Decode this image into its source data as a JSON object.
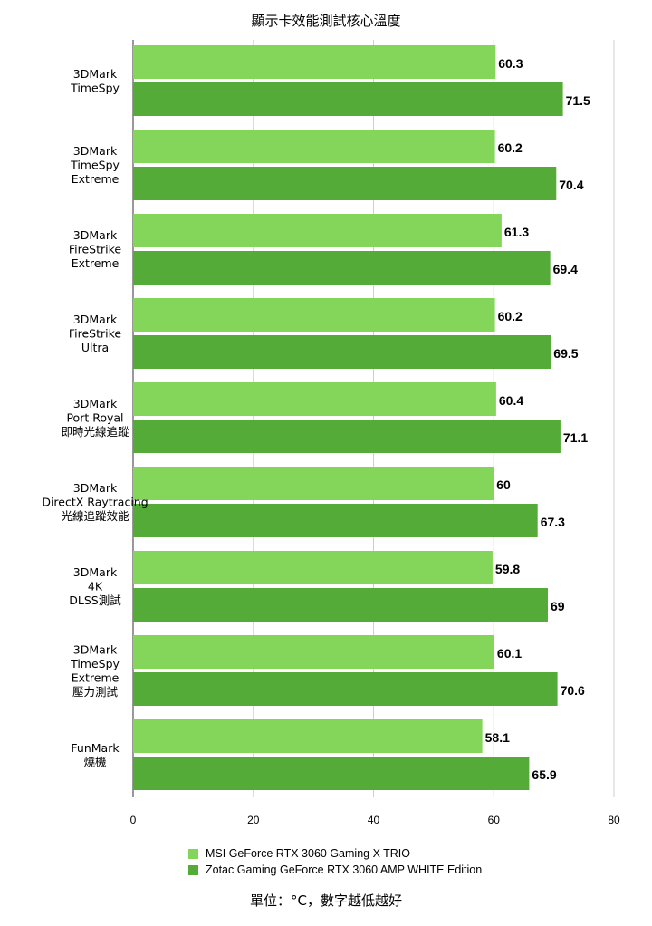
{
  "chart_data": {
    "type": "bar",
    "orientation": "horizontal",
    "title": "顯示卡效能測試核心溫度",
    "categories": [
      "3DMark\nTimeSpy",
      "3DMark\nTimeSpy\nExtreme",
      "3DMark\nFireStrike\nExtreme",
      "3DMark\nFireStrike\nUltra",
      "3DMark\nPort Royal\n即時光線追蹤",
      "3DMark\nDirectX Raytracing\n光線追蹤效能",
      "3DMark\n4K\nDLSS測試",
      "3DMark\nTimeSpy\nExtreme\n壓力測試",
      "FunMark\n燒機"
    ],
    "series": [
      {
        "name": "MSI GeForce RTX 3060 Gaming X TRIO",
        "color": "#83d65a",
        "values": [
          60.3,
          60.2,
          61.3,
          60.2,
          60.4,
          60,
          59.8,
          60.1,
          58.1
        ]
      },
      {
        "name": "Zotac Gaming GeForce RTX 3060 AMP WHITE Edition",
        "color": "#55ab37",
        "values": [
          71.5,
          70.4,
          69.4,
          69.5,
          71.1,
          67.3,
          69,
          70.6,
          65.9
        ]
      }
    ],
    "value_labels": [
      [
        "60.3",
        "60.2",
        "61.3",
        "60.2",
        "60.4",
        "60",
        "59.8",
        "60.1",
        "58.1"
      ],
      [
        "71.5",
        "70.4",
        "69.4",
        "69.5",
        "71.1",
        "67.3",
        "69",
        "70.6",
        "65.9"
      ]
    ],
    "xlim": [
      0,
      80
    ],
    "xticks": [
      0,
      20,
      40,
      60,
      80
    ],
    "xtick_labels": [
      "0",
      "20",
      "40",
      "60",
      "80"
    ],
    "grid": true,
    "legend_position": "bottom",
    "unit_note": "單位：°C，數字越低越好"
  }
}
